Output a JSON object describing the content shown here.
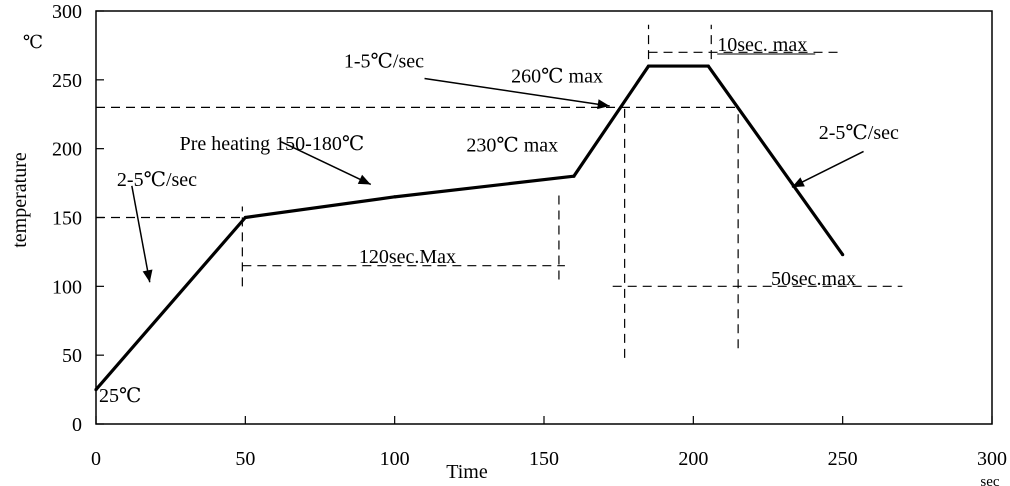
{
  "chart_data": {
    "type": "line",
    "title": "",
    "xlabel": "Time",
    "x_unit": "sec",
    "ylabel": "temperature",
    "y_unit": "℃",
    "xlim": [
      0,
      300
    ],
    "ylim": [
      0,
      300
    ],
    "x_ticks": [
      0,
      50,
      100,
      150,
      200,
      250,
      300
    ],
    "y_ticks": [
      0,
      50,
      100,
      150,
      200,
      250,
      300
    ],
    "grid": false,
    "series": [
      {
        "x": [
          0,
          50,
          100,
          160,
          185,
          205,
          250
        ],
        "y": [
          25,
          150,
          165,
          180,
          260,
          260,
          123
        ]
      }
    ],
    "guides": {
      "h150": {
        "y": 150,
        "x": [
          0,
          50
        ]
      },
      "h230": {
        "y": 230,
        "x": [
          0,
          215
        ]
      },
      "h270": {
        "y": 270,
        "x": [
          185,
          250
        ]
      },
      "h115": {
        "y": 115,
        "x": [
          49,
          157
        ]
      },
      "h100": {
        "y": 100,
        "x": [
          173,
          270
        ]
      },
      "v49": {
        "x": 49,
        "y": [
          100,
          158
        ]
      },
      "v155": {
        "x": 155,
        "y": [
          105,
          170
        ]
      },
      "v177": {
        "x": 177,
        "y": [
          48,
          230
        ]
      },
      "v185": {
        "x": 185,
        "y": [
          265,
          290
        ]
      },
      "v205": {
        "x": 206,
        "y": [
          265,
          290
        ]
      },
      "v215": {
        "x": 215,
        "y": [
          55,
          230
        ]
      }
    },
    "annotations": [
      {
        "id": "start",
        "text": "25℃",
        "x": 1,
        "y": 21
      },
      {
        "id": "ramp1",
        "text": "2-5℃/sec",
        "x": 7,
        "y": 178
      },
      {
        "id": "preheat",
        "text": "Pre heating  150-180℃",
        "x": 28,
        "y": 204
      },
      {
        "id": "dur120",
        "text": "120sec.Max",
        "x": 88,
        "y": 122
      },
      {
        "id": "ramp2",
        "text": "1-5℃/sec",
        "x": 83,
        "y": 264
      },
      {
        "id": "peak",
        "text": "260℃  max",
        "x": 139,
        "y": 253
      },
      {
        "id": "t230",
        "text": "230℃  max",
        "x": 124,
        "y": 203
      },
      {
        "id": "dur10",
        "text": "10sec. max",
        "x": 208,
        "y": 276
      },
      {
        "id": "ramp3",
        "text": "2-5℃/sec",
        "x": 242,
        "y": 212
      },
      {
        "id": "dur50",
        "text": "50sec.max",
        "x": 226,
        "y": 106
      }
    ],
    "arrows": [
      {
        "from": [
          12,
          173
        ],
        "to": [
          18,
          103
        ]
      },
      {
        "from": [
          62,
          205
        ],
        "to": [
          92,
          174
        ]
      },
      {
        "from": [
          110,
          251
        ],
        "to": [
          172,
          231
        ]
      },
      {
        "from": [
          257,
          198
        ],
        "to": [
          233,
          172
        ]
      }
    ]
  }
}
